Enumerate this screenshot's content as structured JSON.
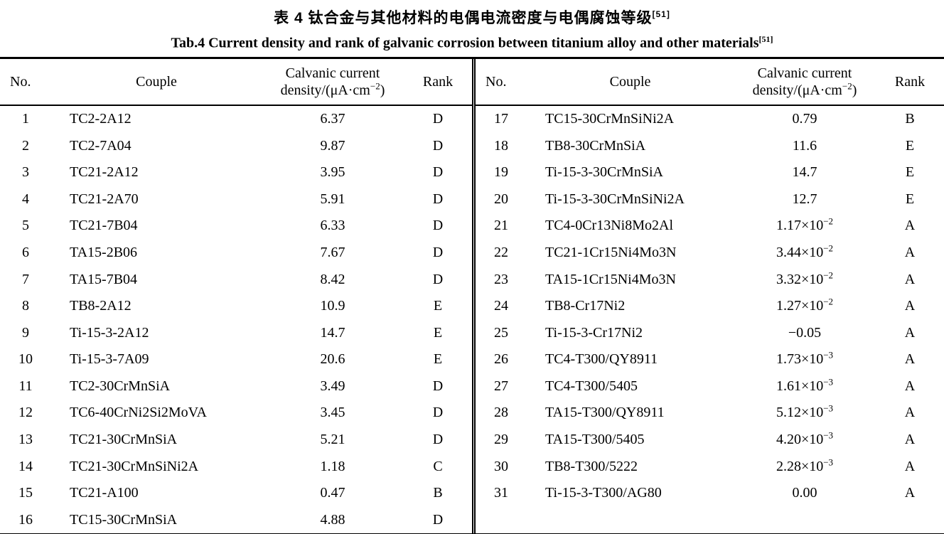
{
  "caption": {
    "zh": "表 4  钛合金与其他材料的电偶电流密度与电偶腐蚀等级",
    "zh_ref": "[51]",
    "en": "Tab.4 Current density and rank of galvanic corrosion between titanium alloy and other materials",
    "en_ref": "[51]"
  },
  "header": {
    "no": "No.",
    "couple": "Couple",
    "density_line1": "Calvanic current",
    "density_line2_pre": "density/(μA·cm",
    "density_line2_sup": "−2",
    "density_line2_post": ")",
    "rank": "Rank"
  },
  "table": {
    "left_rows": [
      {
        "no": "1",
        "couple": "TC2-2A12",
        "val": "6.37",
        "sup": "",
        "rank": "D"
      },
      {
        "no": "2",
        "couple": "TC2-7A04",
        "val": "9.87",
        "sup": "",
        "rank": "D"
      },
      {
        "no": "3",
        "couple": "TC21-2A12",
        "val": "3.95",
        "sup": "",
        "rank": "D"
      },
      {
        "no": "4",
        "couple": "TC21-2A70",
        "val": "5.91",
        "sup": "",
        "rank": "D"
      },
      {
        "no": "5",
        "couple": "TC21-7B04",
        "val": "6.33",
        "sup": "",
        "rank": "D"
      },
      {
        "no": "6",
        "couple": "TA15-2B06",
        "val": "7.67",
        "sup": "",
        "rank": "D"
      },
      {
        "no": "7",
        "couple": "TA15-7B04",
        "val": "8.42",
        "sup": "",
        "rank": "D"
      },
      {
        "no": "8",
        "couple": "TB8-2A12",
        "val": "10.9",
        "sup": "",
        "rank": "E"
      },
      {
        "no": "9",
        "couple": "Ti-15-3-2A12",
        "val": "14.7",
        "sup": "",
        "rank": "E"
      },
      {
        "no": "10",
        "couple": "Ti-15-3-7A09",
        "val": "20.6",
        "sup": "",
        "rank": "E"
      },
      {
        "no": "11",
        "couple": "TC2-30CrMnSiA",
        "val": "3.49",
        "sup": "",
        "rank": "D"
      },
      {
        "no": "12",
        "couple": "TC6-40CrNi2Si2MoVA",
        "val": "3.45",
        "sup": "",
        "rank": "D"
      },
      {
        "no": "13",
        "couple": "TC21-30CrMnSiA",
        "val": "5.21",
        "sup": "",
        "rank": "D"
      },
      {
        "no": "14",
        "couple": "TC21-30CrMnSiNi2A",
        "val": "1.18",
        "sup": "",
        "rank": "C"
      },
      {
        "no": "15",
        "couple": "TC21-A100",
        "val": "0.47",
        "sup": "",
        "rank": "B"
      },
      {
        "no": "16",
        "couple": "TC15-30CrMnSiA",
        "val": "4.88",
        "sup": "",
        "rank": "D"
      }
    ],
    "right_rows": [
      {
        "no": "17",
        "couple": "TC15-30CrMnSiNi2A",
        "val": "0.79",
        "sup": "",
        "rank": "B"
      },
      {
        "no": "18",
        "couple": "TB8-30CrMnSiA",
        "val": "11.6",
        "sup": "",
        "rank": "E"
      },
      {
        "no": "19",
        "couple": "Ti-15-3-30CrMnSiA",
        "val": "14.7",
        "sup": "",
        "rank": "E"
      },
      {
        "no": "20",
        "couple": "Ti-15-3-30CrMnSiNi2A",
        "val": "12.7",
        "sup": "",
        "rank": "E"
      },
      {
        "no": "21",
        "couple": "TC4-0Cr13Ni8Mo2Al",
        "val": "1.17×10",
        "sup": "−2",
        "rank": "A"
      },
      {
        "no": "22",
        "couple": "TC21-1Cr15Ni4Mo3N",
        "val": "3.44×10",
        "sup": "−2",
        "rank": "A"
      },
      {
        "no": "23",
        "couple": "TA15-1Cr15Ni4Mo3N",
        "val": "3.32×10",
        "sup": "−2",
        "rank": "A"
      },
      {
        "no": "24",
        "couple": "TB8-Cr17Ni2",
        "val": "1.27×10",
        "sup": "−2",
        "rank": "A"
      },
      {
        "no": "25",
        "couple": "Ti-15-3-Cr17Ni2",
        "val": "−0.05",
        "sup": "",
        "rank": "A"
      },
      {
        "no": "26",
        "couple": "TC4-T300/QY8911",
        "val": "1.73×10",
        "sup": "−3",
        "rank": "A"
      },
      {
        "no": "27",
        "couple": "TC4-T300/5405",
        "val": "1.61×10",
        "sup": "−3",
        "rank": "A"
      },
      {
        "no": "28",
        "couple": "TA15-T300/QY8911",
        "val": "5.12×10",
        "sup": "−3",
        "rank": "A"
      },
      {
        "no": "29",
        "couple": "TA15-T300/5405",
        "val": "4.20×10",
        "sup": "−3",
        "rank": "A"
      },
      {
        "no": "30",
        "couple": "TB8-T300/5222",
        "val": "2.28×10",
        "sup": "−3",
        "rank": "A"
      },
      {
        "no": "31",
        "couple": "Ti-15-3-T300/AG80",
        "val": "0.00",
        "sup": "",
        "rank": "A"
      }
    ]
  }
}
